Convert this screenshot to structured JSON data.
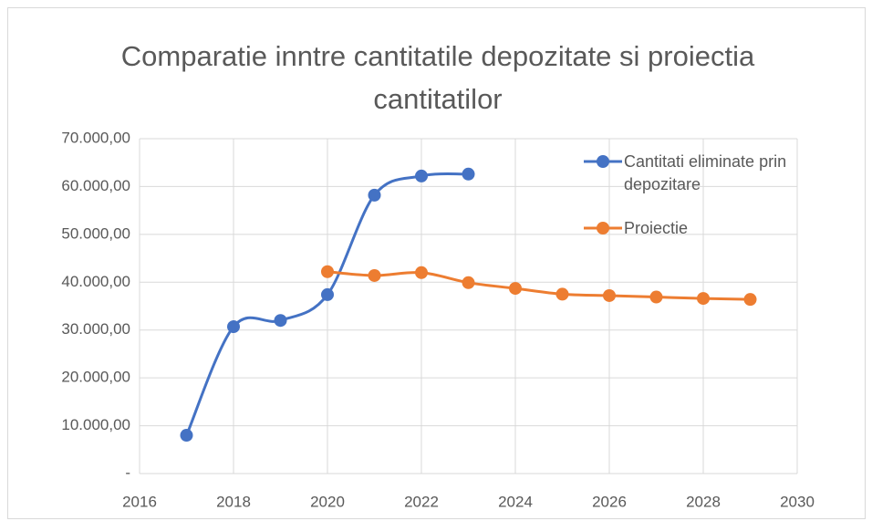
{
  "chart_data": {
    "type": "line",
    "title": "Comparatie inntre cantitatile depozitate si proiectia cantitatilor",
    "series": [
      {
        "name": "Cantitati eliminate prin depozitare",
        "color": "#4472c4",
        "x": [
          2017,
          2018,
          2019,
          2020,
          2021,
          2022,
          2023
        ],
        "values": [
          8000,
          30700,
          32000,
          37400,
          58200,
          62200,
          62600
        ]
      },
      {
        "name": "Proiectie",
        "color": "#ed7d31",
        "x": [
          2020,
          2021,
          2022,
          2023,
          2024,
          2025,
          2026,
          2027,
          2028,
          2029
        ],
        "values": [
          42200,
          41400,
          42000,
          39900,
          38700,
          37500,
          37200,
          36900,
          36600,
          36400
        ]
      }
    ],
    "xlim": [
      2016,
      2030
    ],
    "xticks": [
      2016,
      2018,
      2020,
      2022,
      2024,
      2026,
      2028,
      2030
    ],
    "ylim": [
      0,
      70000
    ],
    "yticks": [
      {
        "value": 0,
        "label": "-"
      },
      {
        "value": 10000,
        "label": "10.000,00"
      },
      {
        "value": 20000,
        "label": "20.000,00"
      },
      {
        "value": 30000,
        "label": "30.000,00"
      },
      {
        "value": 40000,
        "label": "40.000,00"
      },
      {
        "value": 50000,
        "label": "50.000,00"
      },
      {
        "value": 60000,
        "label": "60.000,00"
      },
      {
        "value": 70000,
        "label": "70.000,00"
      }
    ],
    "grid": true,
    "smooth": true,
    "legend": "top-right"
  }
}
